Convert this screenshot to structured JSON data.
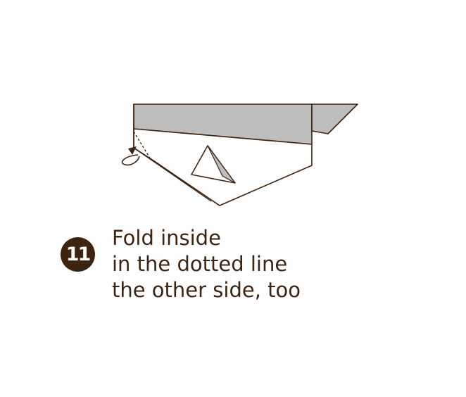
{
  "step": {
    "number": "11"
  },
  "instructions": {
    "lines": [
      "Fold inside",
      "in the dotted line",
      "the other side, too"
    ]
  },
  "colors": {
    "ink": "#3d2410",
    "paper_back": "#bdbdbd",
    "paper_front": "#ffffff",
    "badge_text": "#ffffff"
  },
  "icons": {
    "fold_arrow": "curved-fold-arrow-icon"
  }
}
